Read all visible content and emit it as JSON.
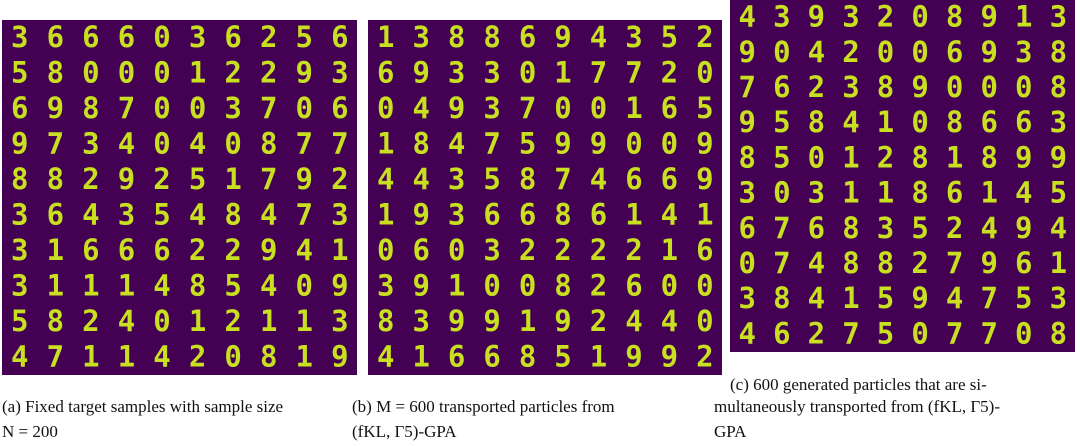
{
  "panels": [
    {
      "rows": [
        "3666036256",
        "5800012293",
        "6987003706",
        "9734040877",
        "8829251792",
        "3643548473",
        "3166622941",
        "3111485409",
        "5824012113",
        "4711420819"
      ],
      "caption_lines": [
        "(a) Fixed target samples with sample size",
        "N = 200"
      ]
    },
    {
      "rows": [
        "1388694352",
        "6933017720",
        "0493700165",
        "1847599009",
        "4435874669",
        "1936686141",
        "0603222216",
        "3910082600",
        "8399192440",
        "4166851992"
      ],
      "caption_lines": [
        "(b) M = 600 transported particles from",
        "(fKL, Γ5)-GPA"
      ]
    },
    {
      "rows": [
        "4393208913",
        "9042006938",
        "7623890008",
        "9584108663",
        "8501281899",
        "3031186145",
        "6768352494",
        "0748827961",
        "3841594753",
        "4627507708"
      ],
      "caption_lines": [
        "(c) 600 generated particles that are si-",
        "multaneously transported from (fKL, Γ5)-",
        "GPA"
      ]
    }
  ]
}
